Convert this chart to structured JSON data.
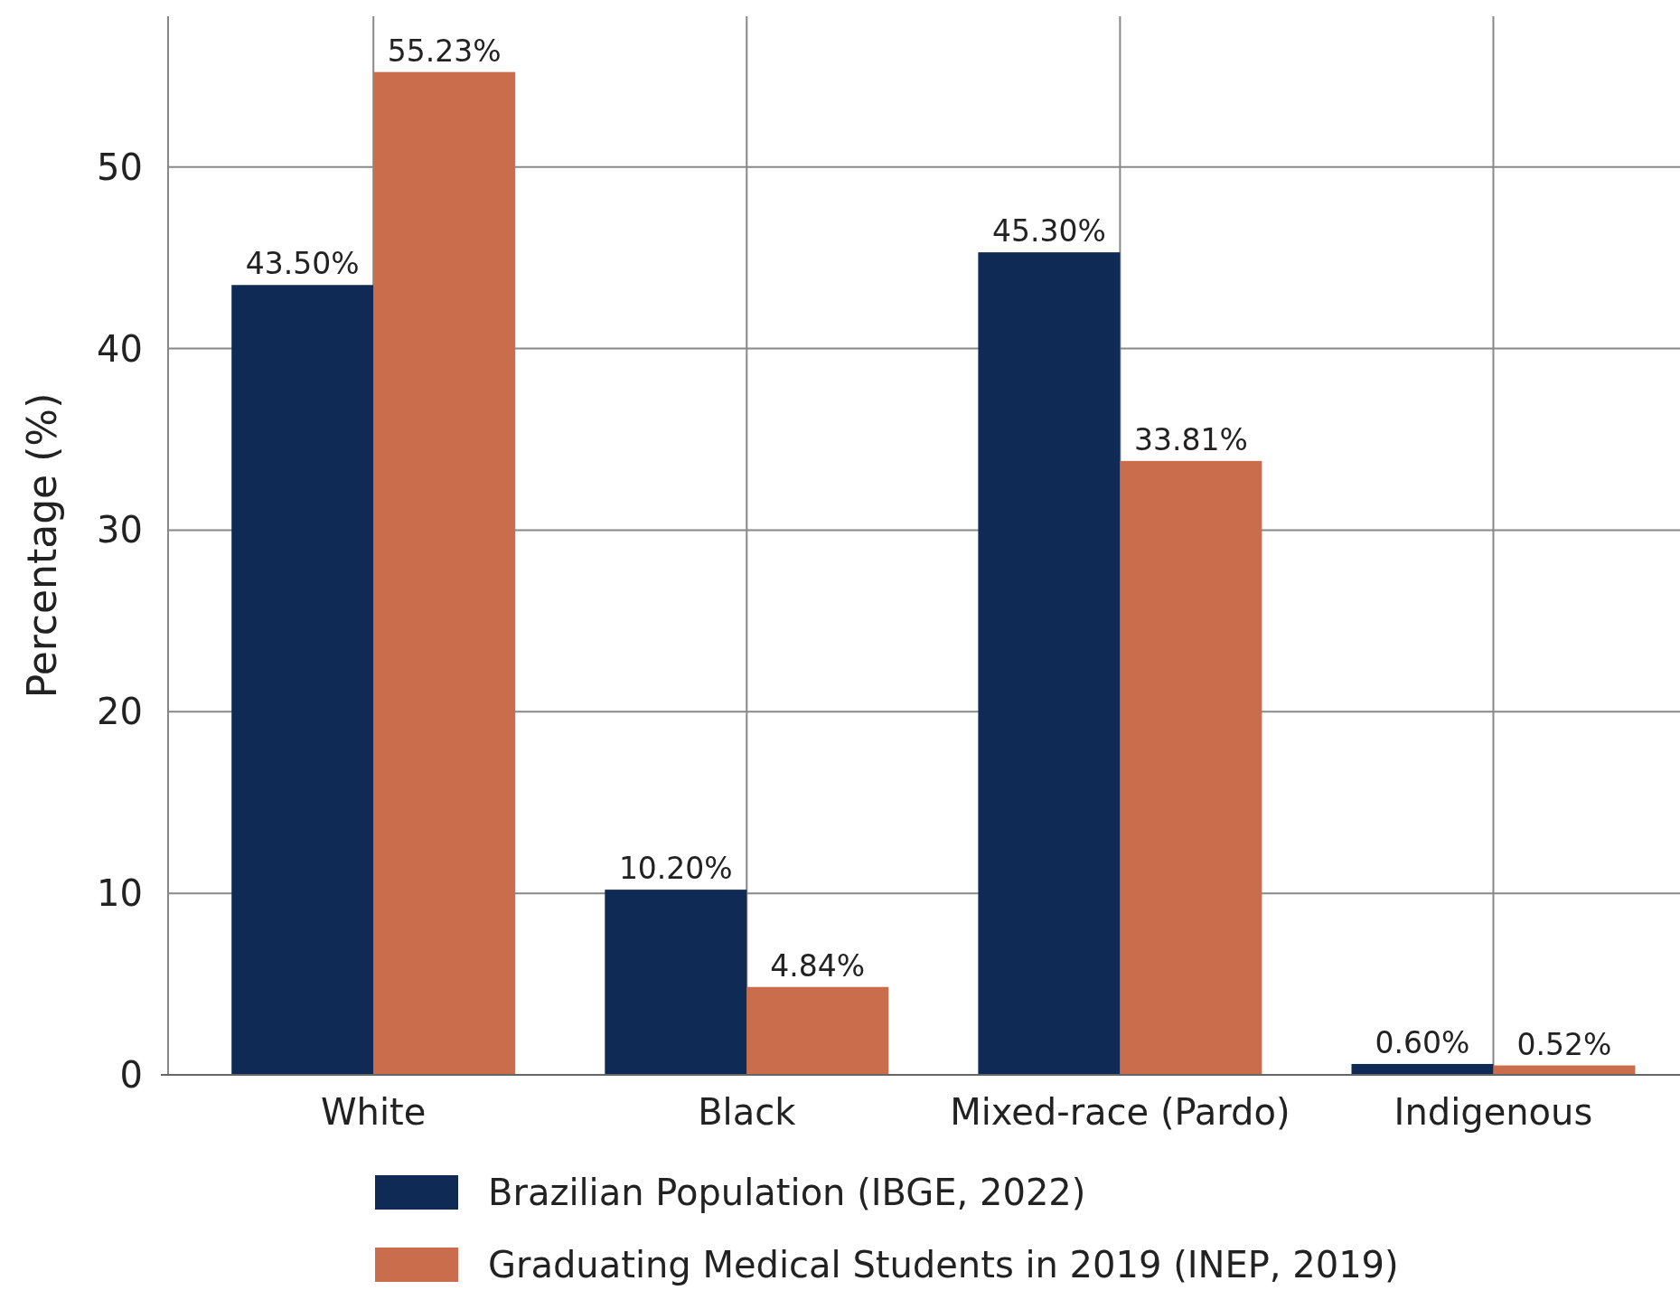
{
  "chart_data": {
    "type": "bar",
    "ylabel": "Percentage (%)",
    "categories": [
      "White",
      "Black",
      "Mixed-race (Pardo)",
      "Indigenous"
    ],
    "series": [
      {
        "name": "Brazilian Population (IBGE, 2022)",
        "color": "#0f2b55",
        "values": [
          43.5,
          10.2,
          45.3,
          0.6
        ],
        "value_labels": [
          "43.50%",
          "10.20%",
          "45.30%",
          "0.60%"
        ]
      },
      {
        "name": "Graduating Medical Students in 2019 (INEP, 2019)",
        "color": "#c96d4c",
        "values": [
          55.23,
          4.84,
          33.81,
          0.52
        ],
        "value_labels": [
          "55.23%",
          "4.84%",
          "33.81%",
          "0.52%"
        ]
      }
    ],
    "ylim": [
      0,
      58.3
    ],
    "yticks": [
      0,
      10,
      20,
      30,
      40,
      50
    ],
    "grid": true,
    "legend": "bottom"
  }
}
